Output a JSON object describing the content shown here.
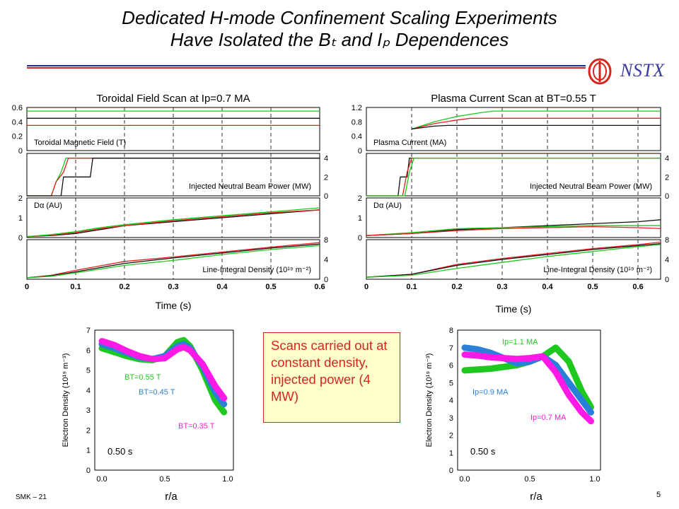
{
  "header": {
    "title_line1": "Dedicated H-mode Confinement Scaling Experiments",
    "title_line2": "Have Isolated the Bₜ and Iₚ Dependences",
    "logo_text": "NSTX"
  },
  "callout": {
    "text": "Scans carried out at constant density, injected power (4 MW)"
  },
  "footer": {
    "left": "SMK – 21",
    "page": "5"
  },
  "colors": {
    "red": "#e02020",
    "green": "#1ec81e",
    "black": "#111111",
    "blue": "#2a80d8",
    "magenta": "#ff19e6",
    "title_blue": "#1c2f8c",
    "accent_red": "#d4261e"
  },
  "chart_data": [
    {
      "id": "bt-scan",
      "type": "line",
      "title": "Toroidal Field Scan at Ip=0.7 MA",
      "xlabel": "Time (s)",
      "xlim": [
        0,
        0.6
      ],
      "xticks": [
        "0",
        "0.1",
        "0.2",
        "0.3",
        "0.4",
        "0.5",
        "0.6"
      ],
      "vlines": [
        0.1,
        0.2,
        0.3,
        0.4,
        0.5
      ],
      "panels": [
        {
          "label": "Toroidal Magnetic Field (T)",
          "ylim": [
            0,
            0.6
          ],
          "axis": "left",
          "ticks": [
            "0",
            "0.2",
            "0.4",
            "0.6"
          ],
          "series": [
            {
              "color": "green",
              "x": [
                0,
                0.6
              ],
              "y": [
                0.55,
                0.55
              ]
            },
            {
              "color": "black",
              "x": [
                0,
                0.6
              ],
              "y": [
                0.45,
                0.45
              ]
            },
            {
              "color": "red",
              "x": [
                0,
                0.6
              ],
              "y": [
                0.35,
                0.35
              ]
            }
          ]
        },
        {
          "label": "Injected Neutral Beam Power (MW)",
          "ylim": [
            0,
            4.5
          ],
          "axis": "right",
          "ticks": [
            "0",
            "2",
            "4"
          ],
          "series": [
            {
              "color": "green",
              "x": [
                0,
                0.05,
                0.06,
                0.07,
                0.08,
                0.6
              ],
              "y": [
                0,
                0,
                1.5,
                2.5,
                4,
                4
              ]
            },
            {
              "color": "red",
              "x": [
                0,
                0.05,
                0.06,
                0.075,
                0.085,
                0.6
              ],
              "y": [
                0,
                0,
                1.5,
                2.5,
                4,
                4
              ]
            },
            {
              "color": "black",
              "x": [
                0,
                0.07,
                0.075,
                0.13,
                0.135,
                0.6
              ],
              "y": [
                0,
                0,
                2,
                2,
                4,
                4
              ]
            }
          ]
        },
        {
          "label": "Dα (AU)",
          "ylim": [
            0,
            2
          ],
          "axis": "left",
          "ticks": [
            "0",
            "1",
            "2"
          ],
          "series": [
            {
              "color": "black",
              "x": [
                0,
                0.05,
                0.1,
                0.15,
                0.2,
                0.3,
                0.4,
                0.5,
                0.6
              ],
              "y": [
                0.05,
                0.1,
                0.2,
                0.4,
                0.6,
                0.8,
                1.0,
                1.2,
                1.4
              ]
            },
            {
              "color": "red",
              "x": [
                0,
                0.05,
                0.1,
                0.15,
                0.2,
                0.3,
                0.4,
                0.5,
                0.6
              ],
              "y": [
                0.05,
                0.12,
                0.25,
                0.45,
                0.6,
                0.85,
                1.05,
                1.25,
                1.4
              ]
            },
            {
              "color": "green",
              "x": [
                0,
                0.05,
                0.1,
                0.15,
                0.2,
                0.3,
                0.4,
                0.5,
                0.6
              ],
              "y": [
                0.05,
                0.15,
                0.3,
                0.5,
                0.65,
                0.9,
                1.1,
                1.3,
                1.5
              ]
            }
          ]
        },
        {
          "label": "Line-Integral Density (10¹⁹ m⁻²)",
          "ylim": [
            0,
            8
          ],
          "axis": "right",
          "ticks": [
            "0",
            "4",
            "8"
          ],
          "series": [
            {
              "color": "red",
              "x": [
                0,
                0.05,
                0.1,
                0.2,
                0.3,
                0.4,
                0.5,
                0.6
              ],
              "y": [
                0.3,
                0.8,
                1.8,
                3.6,
                4.5,
                5.5,
                6.5,
                7.4
              ]
            },
            {
              "color": "black",
              "x": [
                0,
                0.05,
                0.1,
                0.2,
                0.3,
                0.4,
                0.5,
                0.6
              ],
              "y": [
                0.3,
                0.7,
                1.5,
                3.2,
                4.3,
                5.3,
                6.3,
                7.1
              ]
            },
            {
              "color": "green",
              "x": [
                0,
                0.05,
                0.1,
                0.2,
                0.3,
                0.4,
                0.5,
                0.6
              ],
              "y": [
                0.3,
                0.6,
                1.3,
                2.8,
                3.8,
                5.0,
                6.0,
                6.8
              ]
            }
          ]
        }
      ]
    },
    {
      "id": "ip-scan",
      "type": "line",
      "title": "Plasma Current Scan at BT=0.55 T",
      "xlabel": "Time (s)",
      "xlim": [
        0,
        0.65
      ],
      "xticks": [
        "0",
        "0.1",
        "0.2",
        "0.3",
        "0.4",
        "0.5",
        "0.6"
      ],
      "vlines": [
        0.1,
        0.2,
        0.3,
        0.4,
        0.5,
        0.6
      ],
      "panels": [
        {
          "label": "Plasma Current (MA)",
          "ylim": [
            0,
            1.2
          ],
          "axis": "left",
          "ticks": [
            "0",
            "0.4",
            "0.8",
            "1.2"
          ],
          "series": [
            {
              "color": "green",
              "x": [
                0.1,
                0.15,
                0.2,
                0.25,
                0.28,
                0.65
              ],
              "y": [
                0.6,
                0.8,
                0.95,
                1.05,
                1.1,
                1.1
              ]
            },
            {
              "color": "red",
              "x": [
                0.1,
                0.15,
                0.2,
                0.23,
                0.65
              ],
              "y": [
                0.6,
                0.75,
                0.85,
                0.9,
                0.9
              ]
            },
            {
              "color": "black",
              "x": [
                0.1,
                0.15,
                0.18,
                0.65
              ],
              "y": [
                0.6,
                0.68,
                0.7,
                0.7
              ]
            }
          ]
        },
        {
          "label": "Injected Neutral Beam Power (MW)",
          "ylim": [
            0,
            4.5
          ],
          "axis": "right",
          "ticks": [
            "0",
            "2",
            "4"
          ],
          "series": [
            {
              "color": "black",
              "x": [
                0,
                0.07,
                0.075,
                0.09,
                0.095,
                0.65
              ],
              "y": [
                0,
                0,
                2,
                2,
                4,
                4
              ]
            },
            {
              "color": "red",
              "x": [
                0,
                0.08,
                0.09,
                0.1,
                0.65
              ],
              "y": [
                0,
                0,
                2.5,
                4,
                4
              ]
            },
            {
              "color": "green",
              "x": [
                0,
                0.085,
                0.095,
                0.105,
                0.65
              ],
              "y": [
                0,
                0,
                2.5,
                4,
                4
              ]
            }
          ]
        },
        {
          "label": "Dα (AU)",
          "ylim": [
            0,
            2
          ],
          "axis": "left",
          "ticks": [
            "0",
            "1",
            "2"
          ],
          "series": [
            {
              "color": "black",
              "x": [
                0,
                0.1,
                0.2,
                0.3,
                0.4,
                0.5,
                0.6,
                0.65
              ],
              "y": [
                0.1,
                0.2,
                0.4,
                0.5,
                0.6,
                0.7,
                0.8,
                0.9
              ]
            },
            {
              "color": "green",
              "x": [
                0,
                0.1,
                0.2,
                0.3,
                0.4,
                0.5,
                0.6,
                0.65
              ],
              "y": [
                0.1,
                0.25,
                0.45,
                0.5,
                0.55,
                0.6,
                0.6,
                0.6
              ]
            },
            {
              "color": "red",
              "x": [
                0,
                0.1,
                0.2,
                0.3,
                0.4,
                0.5,
                0.6,
                0.65
              ],
              "y": [
                0.1,
                0.2,
                0.35,
                0.45,
                0.5,
                0.55,
                0.5,
                0.45
              ]
            }
          ]
        },
        {
          "label": "Line-Integral Density (10¹⁹ m⁻²)",
          "ylim": [
            0,
            8
          ],
          "axis": "right",
          "ticks": [
            "0",
            "4",
            "8"
          ],
          "series": [
            {
              "color": "red",
              "x": [
                0,
                0.1,
                0.2,
                0.3,
                0.4,
                0.5,
                0.6,
                0.65
              ],
              "y": [
                0.4,
                1.0,
                3.0,
                4.2,
                5.2,
                6.2,
                7.0,
                7.5
              ]
            },
            {
              "color": "black",
              "x": [
                0,
                0.1,
                0.2,
                0.3,
                0.4,
                0.5,
                0.6,
                0.65
              ],
              "y": [
                0.4,
                1.0,
                2.8,
                4.0,
                5.0,
                6.0,
                6.8,
                7.2
              ]
            },
            {
              "color": "green",
              "x": [
                0,
                0.1,
                0.2,
                0.3,
                0.4,
                0.5,
                0.6,
                0.65
              ],
              "y": [
                0.4,
                0.8,
                2.2,
                3.4,
                4.6,
                5.6,
                6.6,
                7.0
              ]
            }
          ]
        }
      ]
    },
    {
      "id": "profile-bt",
      "type": "line",
      "xlabel": "r/a",
      "ylabel": "Electron Density (10¹⁹ m⁻³)",
      "xlim": [
        0,
        1
      ],
      "ylim": [
        0,
        7
      ],
      "xticks": [
        "0.0",
        "0.5",
        "1.0"
      ],
      "yticks": [
        "0",
        "1",
        "2",
        "3",
        "4",
        "5",
        "6",
        "7"
      ],
      "time_label": "0.50 s",
      "series": [
        {
          "name": "BT=0.55 T",
          "color": "green",
          "x": [
            0,
            0.1,
            0.2,
            0.3,
            0.4,
            0.5,
            0.6,
            0.65,
            0.7,
            0.8,
            0.9,
            0.97
          ],
          "y": [
            6.1,
            5.9,
            5.7,
            5.55,
            5.5,
            5.7,
            6.4,
            6.5,
            6.2,
            5.0,
            3.5,
            2.9
          ]
        },
        {
          "name": "BT=0.45 T",
          "color": "blue",
          "x": [
            0,
            0.1,
            0.2,
            0.3,
            0.4,
            0.5,
            0.6,
            0.65,
            0.7,
            0.8,
            0.9,
            0.97
          ],
          "y": [
            6.3,
            6.1,
            5.85,
            5.65,
            5.55,
            5.7,
            6.2,
            6.3,
            6.1,
            5.2,
            3.9,
            3.3
          ]
        },
        {
          "name": "BT=0.35 T",
          "color": "magenta",
          "x": [
            0,
            0.1,
            0.2,
            0.3,
            0.4,
            0.5,
            0.6,
            0.65,
            0.7,
            0.8,
            0.9,
            0.97
          ],
          "y": [
            6.45,
            6.25,
            5.95,
            5.7,
            5.55,
            5.6,
            6.05,
            6.15,
            6.0,
            5.3,
            4.2,
            3.6
          ]
        }
      ]
    },
    {
      "id": "profile-ip",
      "type": "line",
      "xlabel": "r/a",
      "ylabel": "Electron Density (10¹⁹ m⁻³)",
      "xlim": [
        0,
        1
      ],
      "ylim": [
        0,
        8
      ],
      "xticks": [
        "0.0",
        "0.5",
        "1.0"
      ],
      "yticks": [
        "0",
        "1",
        "2",
        "3",
        "4",
        "5",
        "6",
        "7",
        "8"
      ],
      "time_label": "0.50 s",
      "series": [
        {
          "name": "Ip=1.1 MA",
          "color": "green",
          "x": [
            0,
            0.1,
            0.2,
            0.3,
            0.4,
            0.5,
            0.6,
            0.7,
            0.8,
            0.9,
            0.97
          ],
          "y": [
            5.7,
            5.75,
            5.8,
            5.9,
            6.0,
            6.2,
            6.5,
            7.0,
            6.2,
            4.5,
            3.6
          ]
        },
        {
          "name": "Ip=0.9 MA",
          "color": "blue",
          "x": [
            0,
            0.1,
            0.2,
            0.3,
            0.4,
            0.5,
            0.6,
            0.7,
            0.8,
            0.9,
            0.97
          ],
          "y": [
            7.0,
            6.9,
            6.7,
            6.4,
            6.1,
            6.2,
            6.5,
            6.0,
            5.0,
            4.0,
            3.3
          ]
        },
        {
          "name": "Ip=0.7 MA",
          "color": "magenta",
          "x": [
            0,
            0.1,
            0.2,
            0.3,
            0.4,
            0.5,
            0.6,
            0.7,
            0.8,
            0.9,
            0.97
          ],
          "y": [
            6.6,
            6.55,
            6.45,
            6.4,
            6.35,
            6.4,
            6.5,
            5.6,
            4.3,
            3.3,
            2.8
          ]
        }
      ]
    }
  ]
}
